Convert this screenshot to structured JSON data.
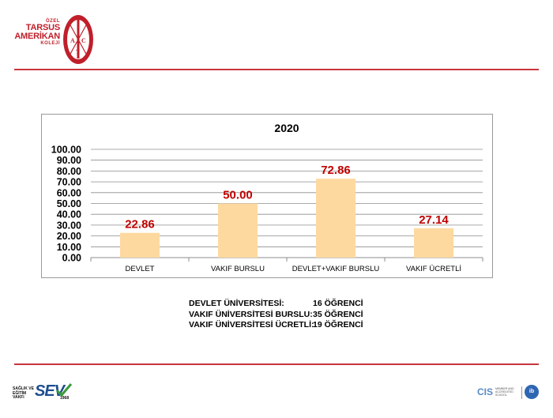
{
  "header": {
    "logo_line1": "ÖZEL",
    "logo_line2": "TARSUS",
    "logo_line3": "AMERİKAN",
    "logo_line4": "KOLEJİ",
    "emblem_letters": [
      "A",
      "C",
      "T"
    ],
    "brand_color": "#c01f2a"
  },
  "chart_data": {
    "type": "bar",
    "title": "2020",
    "categories": [
      "DEVLET",
      "VAKIF BURSLU",
      "DEVLET+VAKIF BURSLU",
      "VAKIF ÜCRETLİ"
    ],
    "values": [
      22.86,
      50.0,
      72.86,
      27.14
    ],
    "value_labels": [
      "22.86",
      "50.00",
      "72.86",
      "27.14"
    ],
    "ylim": [
      0,
      100
    ],
    "y_ticks": [
      "0.00",
      "10.00",
      "20.00",
      "30.00",
      "40.00",
      "50.00",
      "60.00",
      "70.00",
      "80.00",
      "90.00",
      "100.00"
    ],
    "grid": true,
    "bar_color": "#fdd9a0",
    "label_color": "#c00000"
  },
  "summary": {
    "rows": [
      {
        "label": "DEVLET ÜNİVERSİTESİ:",
        "value": "16 ÖĞRENCİ"
      },
      {
        "label": "VAKIF ÜNİVERSİTESİ BURSLU:",
        "value": "35 ÖĞRENCİ"
      },
      {
        "label": "VAKIF ÜNİVERSİTESİ ÜCRETLİ:",
        "value": "19 ÖĞRENCİ"
      }
    ]
  },
  "footer": {
    "sev_small_1": "SAĞLIK VE",
    "sev_small_2": "EĞİTİM",
    "sev_small_3": "VAKFI",
    "sev_logo": "SEV",
    "sev_year": "1968",
    "cis_logo": "CIS",
    "cis_sub_1": "MEMBER AND",
    "cis_sub_2": "ACCREDITED",
    "cis_sub_3": "SCHOOL",
    "ib_logo": "ib"
  }
}
